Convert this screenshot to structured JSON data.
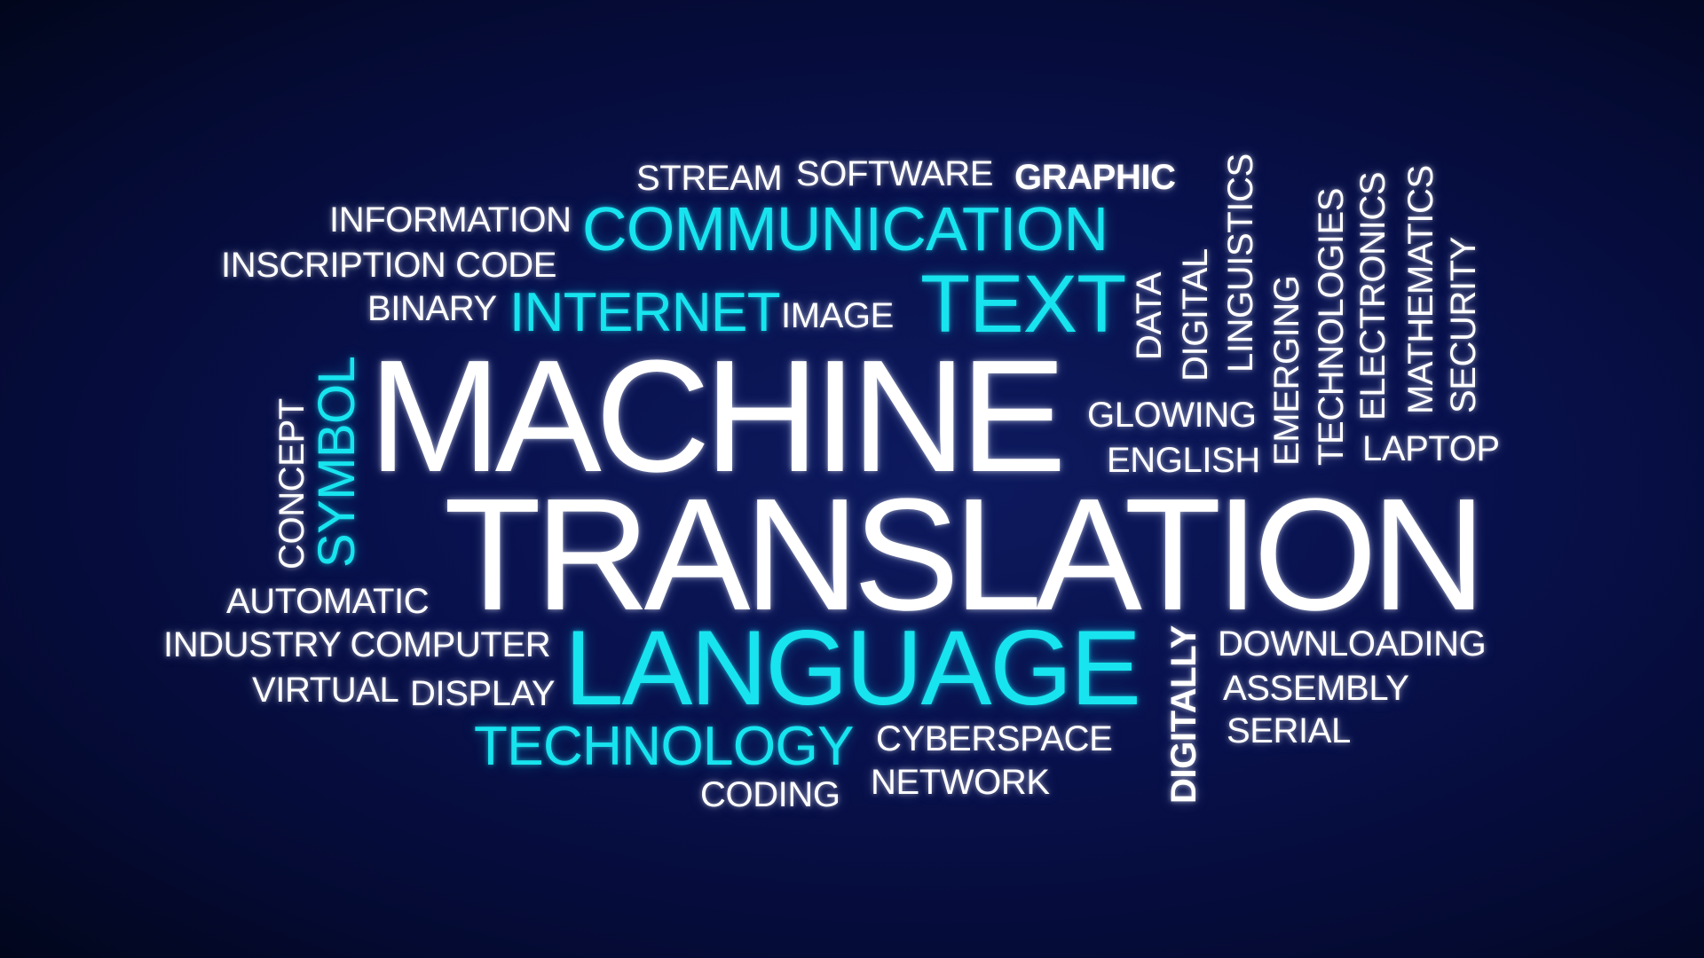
{
  "words": {
    "stream": "STREAM",
    "software": "SOFTWARE",
    "graphic": "GRAPHIC",
    "information": "INFORMATION",
    "communication": "COMMUNICATION",
    "inscription_code": "INSCRIPTION CODE",
    "binary": "BINARY",
    "internet": "INTERNET",
    "image": "IMAGE",
    "text": "TEXT",
    "data": "DATA",
    "digital": "DIGITAL",
    "linguistics": "LINGUISTICS",
    "emerging": "EMERGING",
    "technologies": "TECHNOLOGIES",
    "electronics": "ELECTRONICS",
    "mathematics": "MATHEMATICS",
    "security": "SECURITY",
    "symbol": "SYMBOL",
    "concept": "CONCEPT",
    "machine": "MACHINE",
    "glowing": "GLOWING",
    "english": "ENGLISH",
    "laptop": "LAPTOP",
    "translation": "TRANSLATION",
    "automatic": "AUTOMATIC",
    "industry_computer": "INDUSTRY COMPUTER",
    "virtual": "VIRTUAL",
    "display": "DISPLAY",
    "language": "LANGUAGE",
    "digitally": "DIGITALLY",
    "downloading": "DOWNLOADING",
    "assembly": "ASSEMBLY",
    "serial": "SERIAL",
    "technology": "TECHNOLOGY",
    "cyberspace": "CYBERSPACE",
    "network": "NETWORK",
    "coding": "CODING"
  },
  "colors": {
    "background": "#08104a",
    "white_word": "#ffffff",
    "cyan_word": "#17e4ee"
  }
}
